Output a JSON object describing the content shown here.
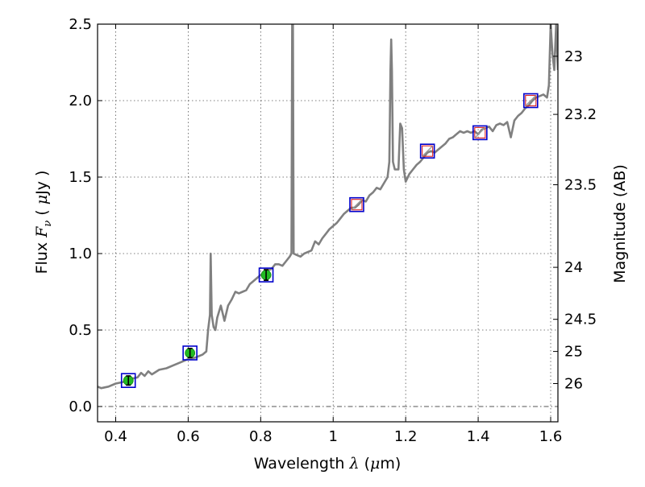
{
  "chart_data": {
    "type": "line",
    "xlabel": "Wavelength  λ (μm)",
    "xlabel_parts": {
      "text": "Wavelength  ",
      "sym": "λ",
      "open": " (",
      "mu": "μ",
      "unit": "m)"
    },
    "ylabel": "Flux  Fν ( μJy )",
    "ylabel_parts": {
      "text": "Flux  ",
      "sym": "F",
      "sub": "ν",
      "open": "  ( ",
      "mu": "μ",
      "unit": "Jy )"
    },
    "ylabel_right": "Magnitude (AB)",
    "xlim": [
      0.35,
      1.62
    ],
    "ylim": [
      -0.1,
      2.5
    ],
    "xticks": [
      0.4,
      0.6,
      0.8,
      1.0,
      1.2,
      1.4,
      1.6
    ],
    "xtick_labels": [
      "0.4",
      "0.6",
      "0.8",
      "1",
      "1.2",
      "1.4",
      "1.6"
    ],
    "yticks": [
      0.0,
      0.5,
      1.0,
      1.5,
      2.0,
      2.5
    ],
    "ytick_labels": [
      "0.0",
      "0.5",
      "1.0",
      "1.5",
      "2.0",
      "2.5"
    ],
    "right_ticks": [
      {
        "label": "23",
        "flux": 2.29
      },
      {
        "label": "23.2",
        "flux": 1.91
      },
      {
        "label": "23.5",
        "flux": 1.45
      },
      {
        "label": "24",
        "flux": 0.91
      },
      {
        "label": "24.5",
        "flux": 0.57
      },
      {
        "label": "25",
        "flux": 0.36
      },
      {
        "label": "26",
        "flux": 0.15
      }
    ],
    "grid": true,
    "zero_line": true,
    "model_spectrum": {
      "color": "#808080",
      "points": [
        [
          0.35,
          0.13
        ],
        [
          0.36,
          0.12
        ],
        [
          0.38,
          0.13
        ],
        [
          0.4,
          0.15
        ],
        [
          0.42,
          0.16
        ],
        [
          0.44,
          0.18
        ],
        [
          0.46,
          0.19
        ],
        [
          0.47,
          0.22
        ],
        [
          0.48,
          0.2
        ],
        [
          0.49,
          0.23
        ],
        [
          0.5,
          0.21
        ],
        [
          0.52,
          0.24
        ],
        [
          0.54,
          0.25
        ],
        [
          0.56,
          0.27
        ],
        [
          0.58,
          0.29
        ],
        [
          0.6,
          0.31
        ],
        [
          0.62,
          0.32
        ],
        [
          0.64,
          0.34
        ],
        [
          0.65,
          0.36
        ],
        [
          0.655,
          0.5
        ],
        [
          0.66,
          0.6
        ],
        [
          0.662,
          1.0
        ],
        [
          0.665,
          0.6
        ],
        [
          0.67,
          0.52
        ],
        [
          0.675,
          0.5
        ],
        [
          0.68,
          0.58
        ],
        [
          0.69,
          0.66
        ],
        [
          0.7,
          0.56
        ],
        [
          0.71,
          0.66
        ],
        [
          0.72,
          0.7
        ],
        [
          0.73,
          0.75
        ],
        [
          0.74,
          0.74
        ],
        [
          0.75,
          0.75
        ],
        [
          0.76,
          0.76
        ],
        [
          0.77,
          0.8
        ],
        [
          0.78,
          0.82
        ],
        [
          0.79,
          0.84
        ],
        [
          0.8,
          0.86
        ],
        [
          0.81,
          0.87
        ],
        [
          0.82,
          0.89
        ],
        [
          0.83,
          0.9
        ],
        [
          0.84,
          0.93
        ],
        [
          0.85,
          0.93
        ],
        [
          0.86,
          0.92
        ],
        [
          0.87,
          0.95
        ],
        [
          0.88,
          0.98
        ],
        [
          0.885,
          1.0
        ],
        [
          0.887,
          2.5
        ],
        [
          0.889,
          2.5
        ],
        [
          0.891,
          1.0
        ],
        [
          0.9,
          0.99
        ],
        [
          0.91,
          0.98
        ],
        [
          0.92,
          1.0
        ],
        [
          0.93,
          1.01
        ],
        [
          0.94,
          1.02
        ],
        [
          0.95,
          1.08
        ],
        [
          0.96,
          1.06
        ],
        [
          0.97,
          1.1
        ],
        [
          0.98,
          1.13
        ],
        [
          0.99,
          1.16
        ],
        [
          1.0,
          1.18
        ],
        [
          1.01,
          1.2
        ],
        [
          1.02,
          1.23
        ],
        [
          1.03,
          1.26
        ],
        [
          1.04,
          1.28
        ],
        [
          1.05,
          1.3
        ],
        [
          1.06,
          1.3
        ],
        [
          1.07,
          1.32
        ],
        [
          1.08,
          1.35
        ],
        [
          1.09,
          1.34
        ],
        [
          1.1,
          1.38
        ],
        [
          1.11,
          1.4
        ],
        [
          1.12,
          1.43
        ],
        [
          1.13,
          1.42
        ],
        [
          1.14,
          1.46
        ],
        [
          1.15,
          1.5
        ],
        [
          1.155,
          1.6
        ],
        [
          1.158,
          2.2
        ],
        [
          1.16,
          2.4
        ],
        [
          1.162,
          2.2
        ],
        [
          1.165,
          1.6
        ],
        [
          1.17,
          1.55
        ],
        [
          1.18,
          1.55
        ],
        [
          1.185,
          1.85
        ],
        [
          1.19,
          1.82
        ],
        [
          1.195,
          1.55
        ],
        [
          1.2,
          1.47
        ],
        [
          1.21,
          1.52
        ],
        [
          1.22,
          1.55
        ],
        [
          1.23,
          1.58
        ],
        [
          1.24,
          1.6
        ],
        [
          1.25,
          1.63
        ],
        [
          1.26,
          1.66
        ],
        [
          1.27,
          1.67
        ],
        [
          1.28,
          1.66
        ],
        [
          1.29,
          1.68
        ],
        [
          1.3,
          1.7
        ],
        [
          1.31,
          1.72
        ],
        [
          1.32,
          1.75
        ],
        [
          1.33,
          1.76
        ],
        [
          1.34,
          1.78
        ],
        [
          1.35,
          1.8
        ],
        [
          1.36,
          1.79
        ],
        [
          1.37,
          1.8
        ],
        [
          1.38,
          1.79
        ],
        [
          1.39,
          1.8
        ],
        [
          1.4,
          1.78
        ],
        [
          1.41,
          1.81
        ],
        [
          1.42,
          1.82
        ],
        [
          1.43,
          1.83
        ],
        [
          1.44,
          1.8
        ],
        [
          1.45,
          1.84
        ],
        [
          1.46,
          1.85
        ],
        [
          1.47,
          1.84
        ],
        [
          1.48,
          1.86
        ],
        [
          1.49,
          1.76
        ],
        [
          1.5,
          1.87
        ],
        [
          1.51,
          1.9
        ],
        [
          1.52,
          1.92
        ],
        [
          1.53,
          1.95
        ],
        [
          1.54,
          1.97
        ],
        [
          1.55,
          2.0
        ],
        [
          1.56,
          2.02
        ],
        [
          1.57,
          2.03
        ],
        [
          1.58,
          2.04
        ],
        [
          1.59,
          2.02
        ],
        [
          1.595,
          2.1
        ],
        [
          1.6,
          2.5
        ],
        [
          1.605,
          2.3
        ],
        [
          1.61,
          2.2
        ],
        [
          1.615,
          2.5
        ],
        [
          1.62,
          2.2
        ]
      ]
    },
    "model_photometry": {
      "marker": "square",
      "color": "#0000cc",
      "points": [
        [
          0.435,
          0.17
        ],
        [
          0.605,
          0.35
        ],
        [
          0.815,
          0.86
        ],
        [
          1.065,
          1.32
        ],
        [
          1.26,
          1.67
        ],
        [
          1.405,
          1.79
        ],
        [
          1.545,
          2.0
        ]
      ]
    },
    "observed_detections": {
      "marker": "circle",
      "color": "#22bb22",
      "error_color": "#000000",
      "points": [
        {
          "x": 0.435,
          "y": 0.17,
          "err": 0.03
        },
        {
          "x": 0.605,
          "y": 0.35,
          "err": 0.03
        },
        {
          "x": 0.815,
          "y": 0.86,
          "err": 0.035
        }
      ]
    },
    "upper_limits": {
      "marker": "square-with-diagonal",
      "color": "#dd2222",
      "points": [
        [
          1.065,
          1.32
        ],
        [
          1.26,
          1.67
        ],
        [
          1.405,
          1.79
        ],
        [
          1.545,
          2.0
        ]
      ]
    }
  }
}
